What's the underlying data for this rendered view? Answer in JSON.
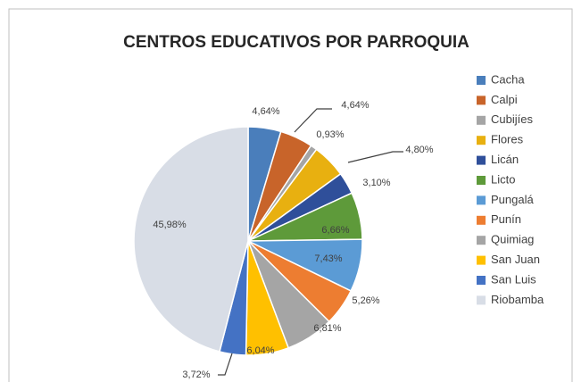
{
  "chart_data": {
    "type": "pie",
    "title": "CENTROS EDUCATIVOS POR PARROQUIA",
    "categories": [
      "Cacha",
      "Calpi",
      "Cubijíes",
      "Flores",
      "Licán",
      "Licto",
      "Pungalá",
      "Punín",
      "Quimiag",
      "San Juan",
      "San Luis",
      "Riobamba"
    ],
    "values": [
      4.64,
      4.64,
      0.93,
      4.8,
      3.1,
      6.66,
      7.43,
      5.26,
      6.81,
      6.04,
      3.72,
      45.98
    ],
    "value_labels": [
      "4,64%",
      "4,64%",
      "0,93%",
      "4,80%",
      "3,10%",
      "6,66%",
      "7,43%",
      "5,26%",
      "6,81%",
      "6,04%",
      "3,72%",
      "45,98%"
    ],
    "colors": [
      "#4a7ebb",
      "#c8642a",
      "#a5a5a5",
      "#e8b010",
      "#2f4f9a",
      "#5e9a3a",
      "#5b9bd5",
      "#ed7d31",
      "#a5a5a5",
      "#ffc000",
      "#4472c4",
      "#d8dde6"
    ],
    "legend": "right"
  }
}
